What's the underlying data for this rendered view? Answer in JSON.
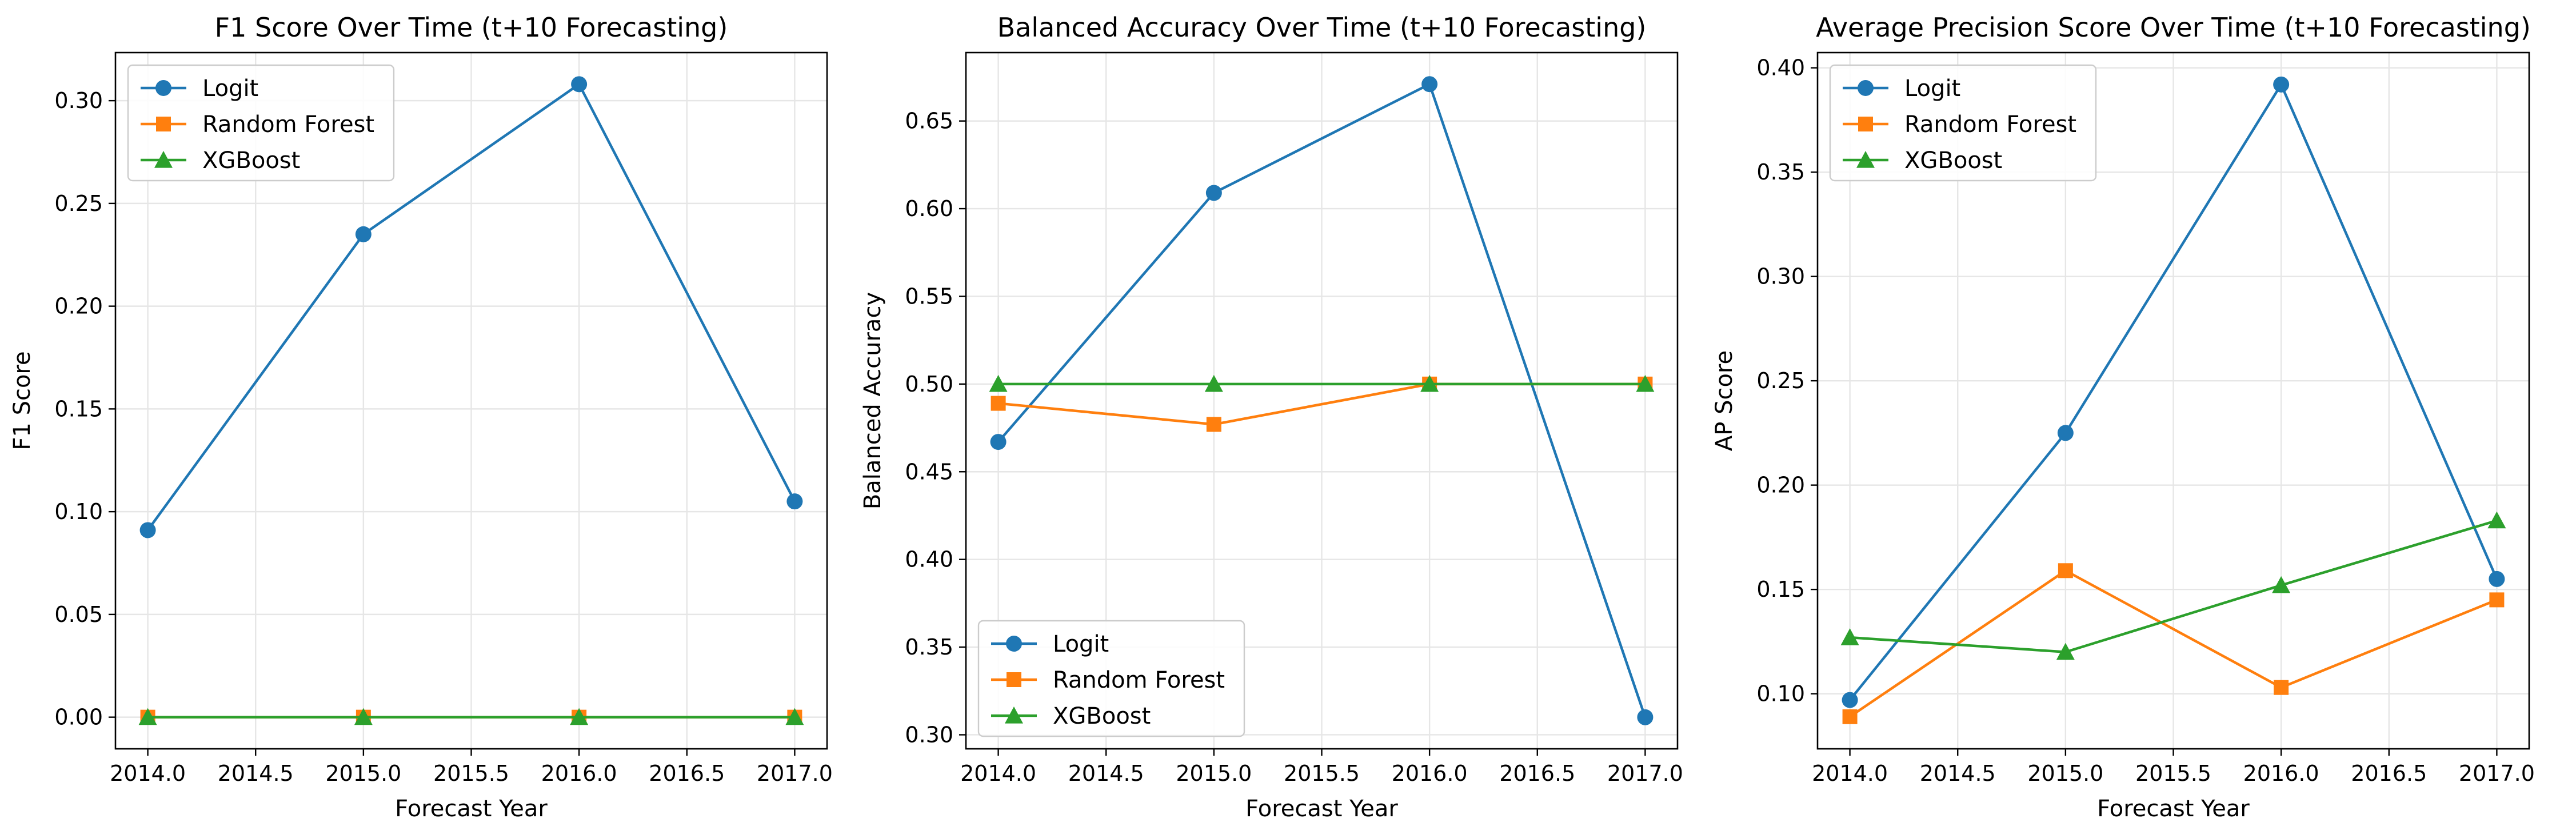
{
  "series_styles": {
    "Logit": {
      "color": "#1f77b4",
      "marker": "circle"
    },
    "Random Forest": {
      "color": "#ff7f0e",
      "marker": "square"
    },
    "XGBoost": {
      "color": "#2ca02c",
      "marker": "triangle"
    }
  },
  "chart_data": [
    {
      "type": "line",
      "title": "F1 Score Over Time (t+10 Forecasting)",
      "xlabel": "Forecast Year",
      "ylabel": "F1 Score",
      "x": [
        2014.0,
        2015.0,
        2016.0,
        2017.0
      ],
      "xlim": [
        2013.85,
        2017.15
      ],
      "ylim": [
        -0.0154,
        0.3234
      ],
      "xticks": [
        2014.0,
        2014.5,
        2015.0,
        2015.5,
        2016.0,
        2016.5,
        2017.0
      ],
      "xtick_labels": [
        "2014.0",
        "2014.5",
        "2015.0",
        "2015.5",
        "2016.0",
        "2016.5",
        "2017.0"
      ],
      "yticks": [
        0.0,
        0.05,
        0.1,
        0.15,
        0.2,
        0.25,
        0.3
      ],
      "ytick_labels": [
        "0.00",
        "0.05",
        "0.10",
        "0.15",
        "0.20",
        "0.25",
        "0.30"
      ],
      "grid": true,
      "legend_position": "upper-left",
      "series": [
        {
          "name": "Logit",
          "values": [
            0.091,
            0.235,
            0.308,
            0.105
          ]
        },
        {
          "name": "Random Forest",
          "values": [
            0.0,
            0.0,
            0.0,
            0.0
          ]
        },
        {
          "name": "XGBoost",
          "values": [
            0.0,
            0.0,
            0.0,
            0.0
          ]
        }
      ]
    },
    {
      "type": "line",
      "title": "Balanced Accuracy Over Time (t+10 Forecasting)",
      "xlabel": "Forecast Year",
      "ylabel": "Balanced Accuracy",
      "x": [
        2014.0,
        2015.0,
        2016.0,
        2017.0
      ],
      "xlim": [
        2013.85,
        2017.15
      ],
      "ylim": [
        0.292,
        0.689
      ],
      "xticks": [
        2014.0,
        2014.5,
        2015.0,
        2015.5,
        2016.0,
        2016.5,
        2017.0
      ],
      "xtick_labels": [
        "2014.0",
        "2014.5",
        "2015.0",
        "2015.5",
        "2016.0",
        "2016.5",
        "2017.0"
      ],
      "yticks": [
        0.3,
        0.35,
        0.4,
        0.45,
        0.5,
        0.55,
        0.6,
        0.65
      ],
      "ytick_labels": [
        "0.30",
        "0.35",
        "0.40",
        "0.45",
        "0.50",
        "0.55",
        "0.60",
        "0.65"
      ],
      "grid": true,
      "legend_position": "lower-left",
      "series": [
        {
          "name": "Logit",
          "values": [
            0.467,
            0.609,
            0.671,
            0.31
          ]
        },
        {
          "name": "Random Forest",
          "values": [
            0.489,
            0.477,
            0.5,
            0.5
          ]
        },
        {
          "name": "XGBoost",
          "values": [
            0.5,
            0.5,
            0.5,
            0.5
          ]
        }
      ]
    },
    {
      "type": "line",
      "title": "Average Precision Score Over Time (t+10 Forecasting)",
      "xlabel": "Forecast Year",
      "ylabel": "AP Score",
      "x": [
        2014.0,
        2015.0,
        2016.0,
        2017.0
      ],
      "xlim": [
        2013.85,
        2017.15
      ],
      "ylim": [
        0.0736,
        0.4073
      ],
      "xticks": [
        2014.0,
        2014.5,
        2015.0,
        2015.5,
        2016.0,
        2016.5,
        2017.0
      ],
      "xtick_labels": [
        "2014.0",
        "2014.5",
        "2015.0",
        "2015.5",
        "2016.0",
        "2016.5",
        "2017.0"
      ],
      "yticks": [
        0.1,
        0.15,
        0.2,
        0.25,
        0.3,
        0.35,
        0.4
      ],
      "ytick_labels": [
        "0.10",
        "0.15",
        "0.20",
        "0.25",
        "0.30",
        "0.35",
        "0.40"
      ],
      "grid": true,
      "legend_position": "upper-left",
      "series": [
        {
          "name": "Logit",
          "values": [
            0.097,
            0.225,
            0.392,
            0.155
          ]
        },
        {
          "name": "Random Forest",
          "values": [
            0.089,
            0.159,
            0.103,
            0.145
          ]
        },
        {
          "name": "XGBoost",
          "values": [
            0.127,
            0.12,
            0.152,
            0.183
          ]
        }
      ]
    }
  ]
}
